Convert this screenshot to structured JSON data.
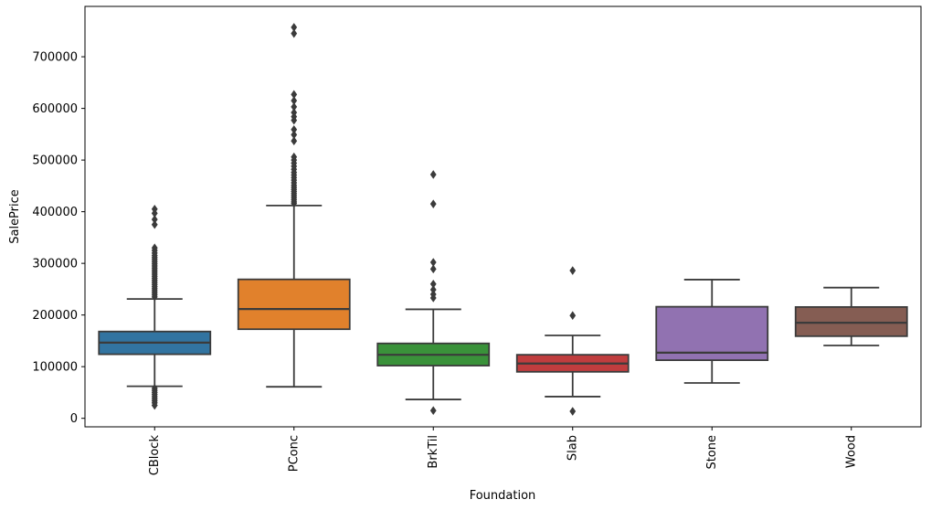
{
  "figure": {
    "background": "#ffffff",
    "frame_color": "#000000",
    "text_color": "#000000"
  },
  "chart_data": {
    "type": "box",
    "title": "",
    "xlabel": "Foundation",
    "ylabel": "SalePrice",
    "categories": [
      "CBlock",
      "PConc",
      "BrkTil",
      "Slab",
      "Stone",
      "Wood"
    ],
    "ylim": [
      -16500,
      797500
    ],
    "yticks": [
      0,
      100000,
      200000,
      300000,
      400000,
      500000,
      600000,
      700000
    ],
    "grid": false,
    "legend": null,
    "box_line_color": "#3b3b3b",
    "series": [
      {
        "label": "CBlock",
        "color": "#3274a1",
        "whisker_low": 62000,
        "q1": 124000,
        "median": 146500,
        "q3": 168000,
        "whisker_high": 231000,
        "outliers": [
          405000,
          397000,
          385000,
          375000,
          330000,
          325000,
          320000,
          315000,
          311000,
          307000,
          303000,
          299000,
          295000,
          291000,
          287000,
          283000,
          279000,
          275000,
          271000,
          267000,
          263000,
          259000,
          255000,
          251000,
          247000,
          243000,
          239000,
          235000,
          58000,
          54000,
          50000,
          46000,
          42000,
          38000,
          34000,
          30000,
          25000
        ]
      },
      {
        "label": "PConc",
        "color": "#e1812c",
        "whisker_low": 61000,
        "q1": 172500,
        "median": 211500,
        "q3": 269000,
        "whisker_high": 412000,
        "outliers": [
          757000,
          745000,
          627000,
          615000,
          603000,
          592000,
          584000,
          577000,
          559000,
          549000,
          537000,
          506000,
          500000,
          494000,
          488000,
          482000,
          476000,
          471000,
          466000,
          461000,
          456000,
          451000,
          447000,
          443000,
          439000,
          435000,
          431000,
          427000,
          423000,
          419000,
          416000
        ]
      },
      {
        "label": "BrkTil",
        "color": "#3a923a",
        "whisker_low": 36500,
        "q1": 102000,
        "median": 123000,
        "q3": 145000,
        "whisker_high": 211000,
        "outliers": [
          472000,
          415000,
          302000,
          289000,
          260000,
          249000,
          240000,
          233000,
          15000
        ]
      },
      {
        "label": "Slab",
        "color": "#c03d3e",
        "whisker_low": 42000,
        "q1": 90000,
        "median": 106000,
        "q3": 123000,
        "whisker_high": 160500,
        "outliers": [
          286000,
          199000,
          13500
        ]
      },
      {
        "label": "Stone",
        "color": "#9172b1",
        "whisker_low": 68500,
        "q1": 112500,
        "median": 127000,
        "q3": 216000,
        "whisker_high": 268500,
        "outliers": []
      },
      {
        "label": "Wood",
        "color": "#855d53",
        "whisker_low": 141000,
        "q1": 159000,
        "median": 185000,
        "q3": 215500,
        "whisker_high": 253000,
        "outliers": []
      }
    ]
  }
}
